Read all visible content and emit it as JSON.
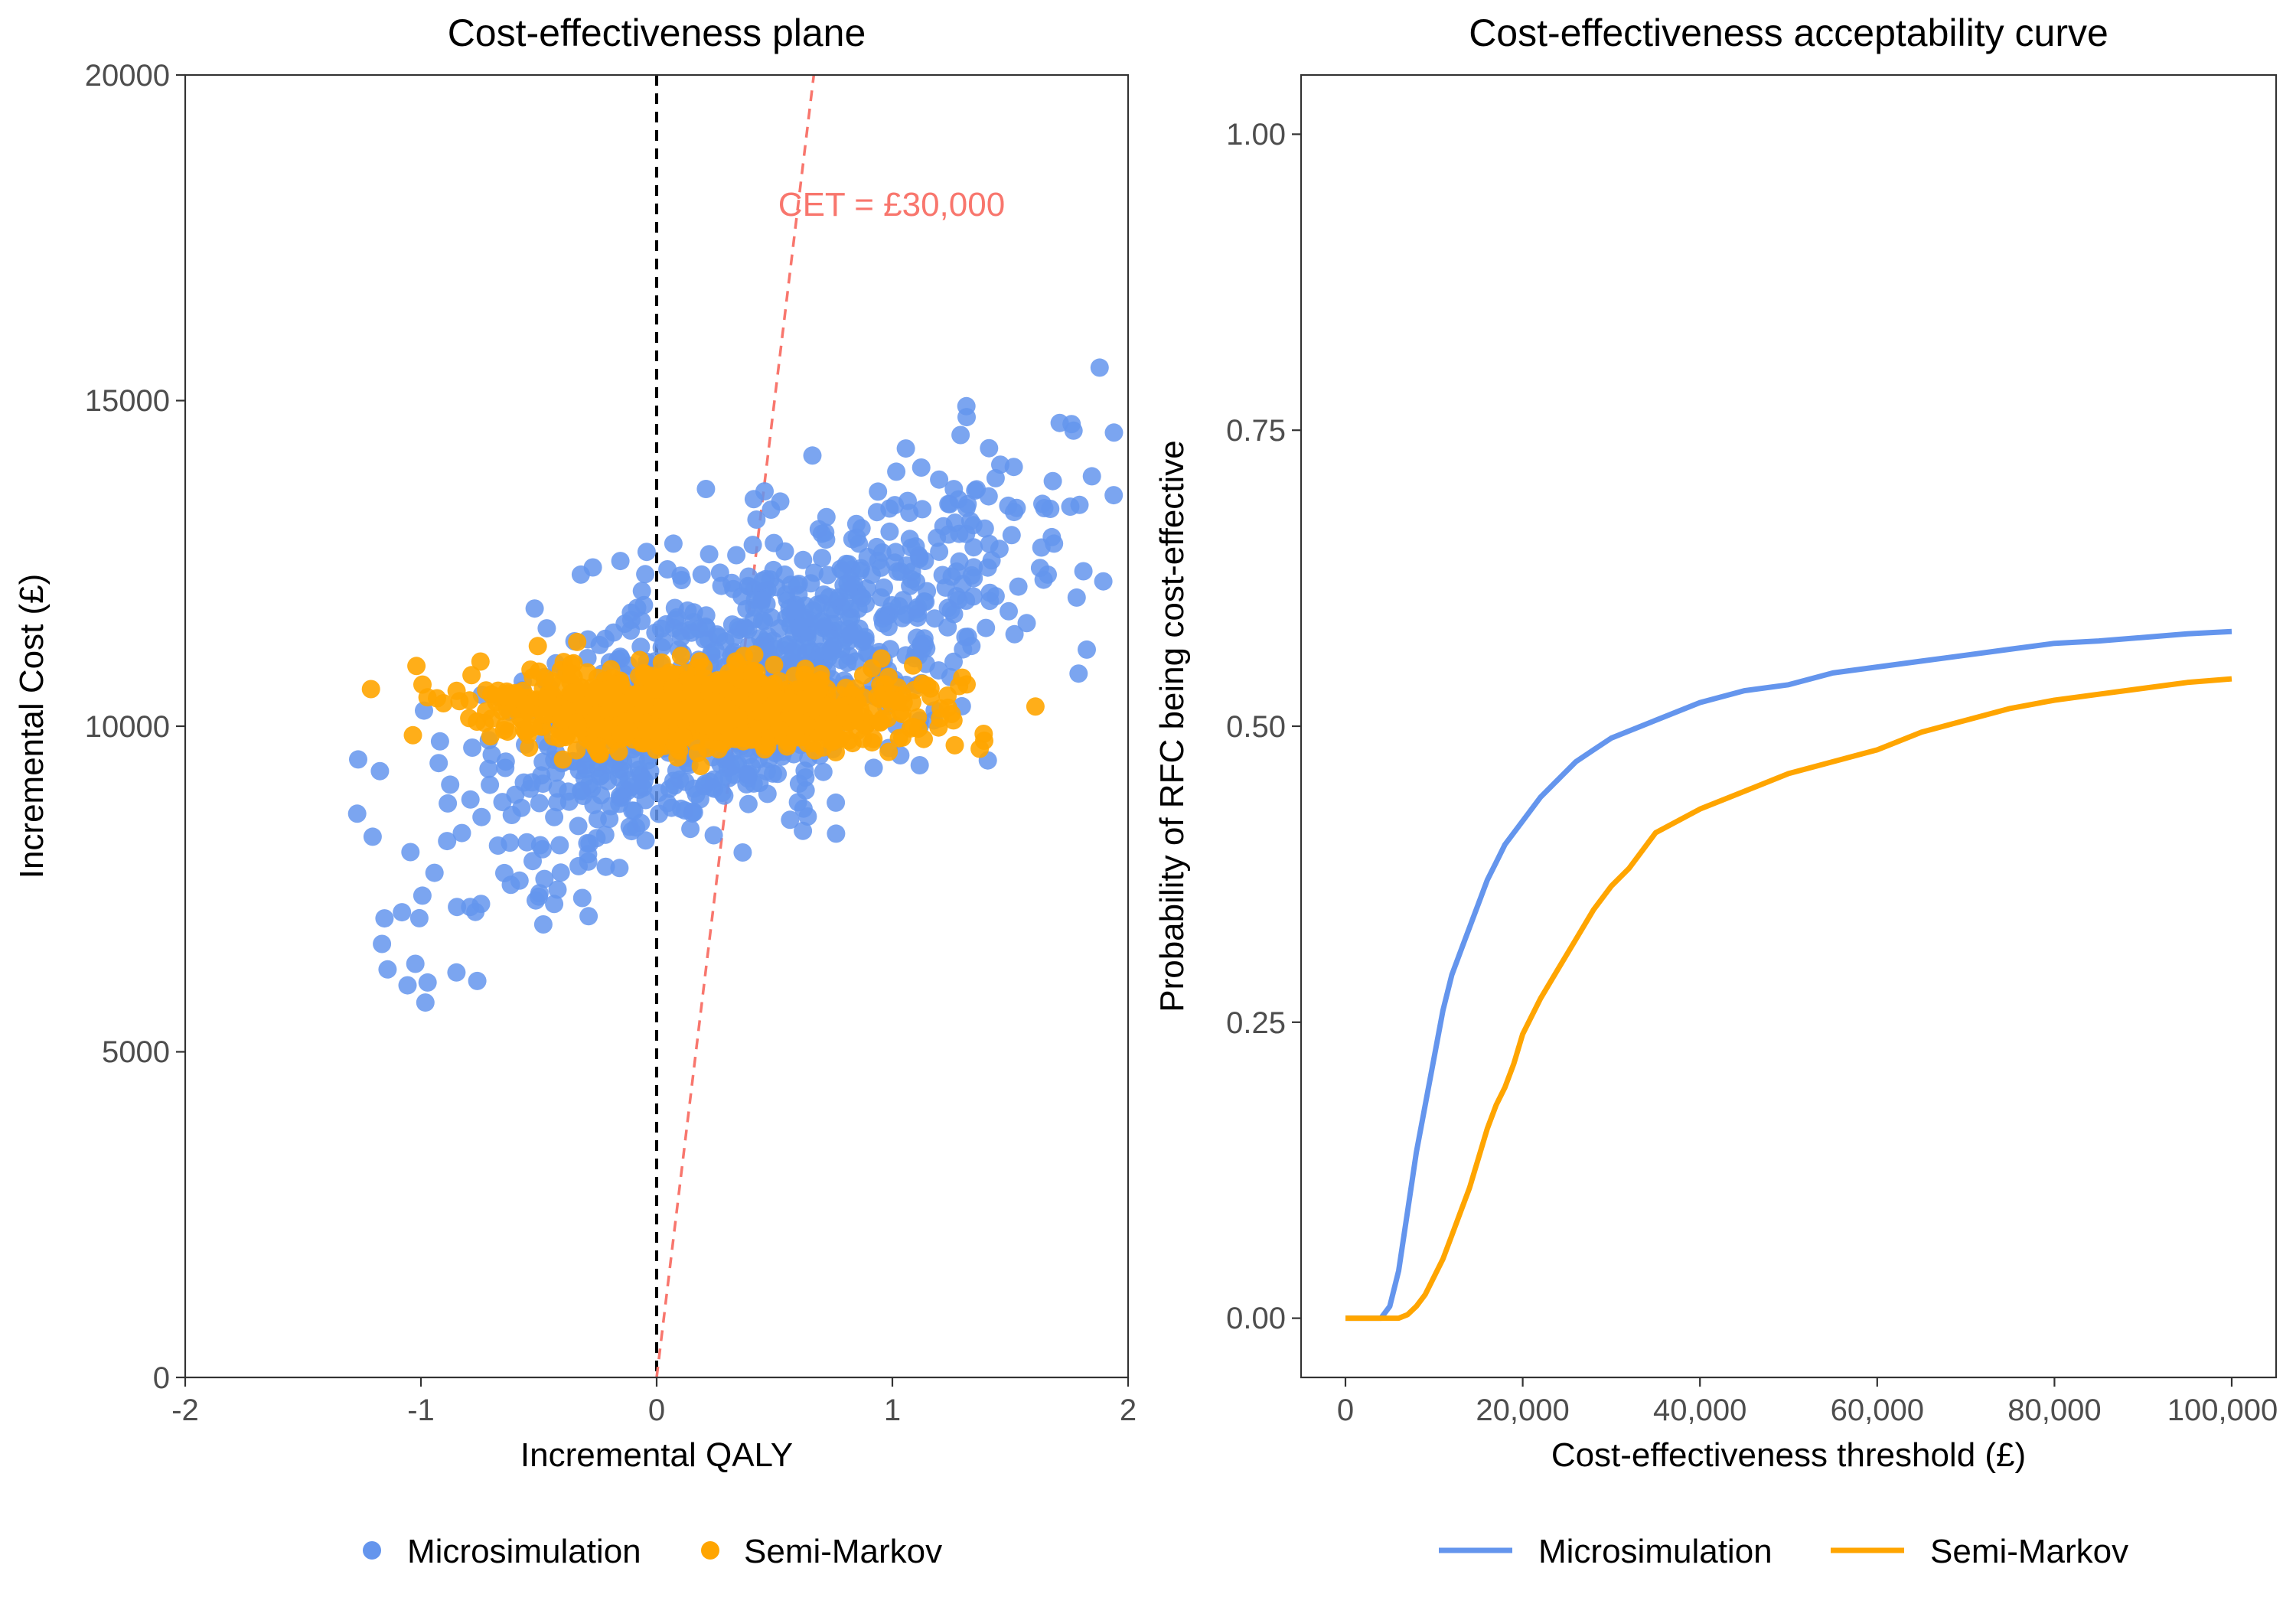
{
  "colors": {
    "microsimulation": "#6495ED",
    "semi_markov": "#FFA500",
    "threshold_line": "#F8766D",
    "zero_line": "#000000"
  },
  "chart_data": [
    {
      "type": "scatter",
      "title": "Cost-effectiveness plane",
      "xlabel": "Incremental QALY",
      "ylabel": "Incremental Cost (£)",
      "xlim": [
        -2,
        2
      ],
      "ylim": [
        0,
        20000
      ],
      "x_ticks": [
        "-2",
        "-1",
        "0",
        "1",
        "2"
      ],
      "y_ticks": [
        "0",
        "5000",
        "10000",
        "15000",
        "20000"
      ],
      "grid": false,
      "reference_lines": [
        {
          "kind": "vertical",
          "x": 0,
          "style": "dashed",
          "color": "#000000"
        },
        {
          "kind": "threshold",
          "slope": 30000,
          "label": "CET = £30,000",
          "style": "dashed",
          "color": "#F8766D"
        }
      ],
      "series": [
        {
          "name": "Microsimulation",
          "color": "#6495ED",
          "x_mean": 0.35,
          "x_sd": 0.62,
          "y_intercept": 10000,
          "y_slope": 1800,
          "y_sd": 1050,
          "n": 1000
        },
        {
          "name": "Semi-Markov",
          "color": "#FFA500",
          "x_mean": 0.2,
          "x_sd": 0.45,
          "y_mean": 10250,
          "y_sd": 300,
          "n": 1000
        }
      ],
      "legend": {
        "position": "bottom",
        "entries": [
          "Microsimulation",
          "Semi-Markov"
        ]
      }
    },
    {
      "type": "line",
      "title": "Cost-effectiveness acceptability curve",
      "xlabel": "Cost-effectiveness threshold (£)",
      "ylabel": "Probability of RFC being cost-effective",
      "xlim": [
        0,
        100000
      ],
      "ylim": [
        -0.05,
        1.05
      ],
      "x_ticks": [
        "0",
        "20,000",
        "40,000",
        "60,000",
        "80,000",
        "100,000"
      ],
      "y_ticks": [
        "0.00",
        "0.25",
        "0.50",
        "0.75",
        "1.00"
      ],
      "grid": false,
      "series": [
        {
          "name": "Microsimulation",
          "color": "#6495ED",
          "x": [
            0,
            4000,
            5000,
            6000,
            7000,
            8000,
            9000,
            10000,
            11000,
            12000,
            13000,
            14000,
            15000,
            16000,
            17000,
            18000,
            20000,
            22000,
            24000,
            26000,
            28000,
            30000,
            35000,
            40000,
            45000,
            50000,
            55000,
            60000,
            65000,
            70000,
            75000,
            80000,
            85000,
            90000,
            95000,
            100000
          ],
          "y": [
            0,
            0,
            0.01,
            0.04,
            0.09,
            0.14,
            0.18,
            0.22,
            0.26,
            0.29,
            0.31,
            0.33,
            0.35,
            0.37,
            0.385,
            0.4,
            0.42,
            0.44,
            0.455,
            0.47,
            0.48,
            0.49,
            0.505,
            0.52,
            0.53,
            0.535,
            0.545,
            0.55,
            0.555,
            0.56,
            0.565,
            0.57,
            0.572,
            0.575,
            0.578,
            0.58
          ]
        },
        {
          "name": "Semi-Markov",
          "color": "#FFA500",
          "x": [
            0,
            6000,
            7000,
            8000,
            9000,
            10000,
            11000,
            12000,
            13000,
            14000,
            15000,
            16000,
            17000,
            18000,
            19000,
            20000,
            22000,
            24000,
            26000,
            28000,
            30000,
            32000,
            35000,
            40000,
            45000,
            50000,
            55000,
            60000,
            65000,
            70000,
            75000,
            80000,
            85000,
            90000,
            95000,
            100000
          ],
          "y": [
            0,
            0,
            0.003,
            0.01,
            0.02,
            0.035,
            0.05,
            0.07,
            0.09,
            0.11,
            0.135,
            0.16,
            0.18,
            0.195,
            0.215,
            0.24,
            0.27,
            0.295,
            0.32,
            0.345,
            0.365,
            0.38,
            0.41,
            0.43,
            0.445,
            0.46,
            0.47,
            0.48,
            0.495,
            0.505,
            0.515,
            0.522,
            0.527,
            0.532,
            0.537,
            0.54
          ]
        }
      ],
      "legend": {
        "position": "bottom",
        "entries": [
          "Microsimulation",
          "Semi-Markov"
        ]
      }
    }
  ]
}
